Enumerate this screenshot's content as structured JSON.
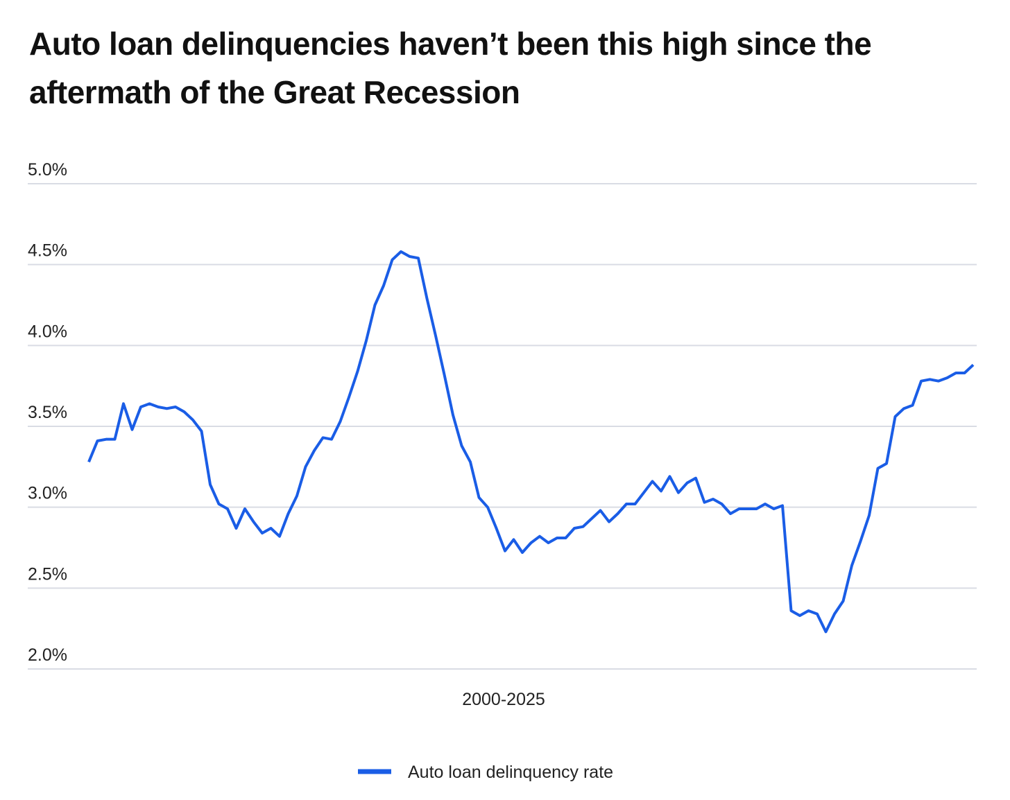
{
  "chart_data": {
    "type": "line",
    "title": "Auto loan delinquencies haven’t been this high since the aftermath of the Great Recession",
    "xlabel": "2000-2025",
    "series": [
      {
        "name": "Auto loan delinquency rate",
        "color": "#1a5de6",
        "values": [
          3.28,
          3.41,
          3.42,
          3.42,
          3.64,
          3.48,
          3.62,
          3.64,
          3.62,
          3.61,
          3.62,
          3.59,
          3.54,
          3.47,
          3.14,
          3.02,
          2.99,
          2.87,
          2.99,
          2.91,
          2.84,
          2.87,
          2.82,
          2.96,
          3.07,
          3.25,
          3.35,
          3.43,
          3.42,
          3.53,
          3.68,
          3.84,
          4.03,
          4.25,
          4.37,
          4.53,
          4.58,
          4.55,
          4.54,
          4.29,
          4.06,
          3.82,
          3.57,
          3.38,
          3.28,
          3.06,
          3.0,
          2.87,
          2.73,
          2.8,
          2.72,
          2.78,
          2.82,
          2.78,
          2.81,
          2.81,
          2.87,
          2.88,
          2.93,
          2.98,
          2.91,
          2.96,
          3.02,
          3.02,
          3.09,
          3.16,
          3.1,
          3.19,
          3.09,
          3.15,
          3.18,
          3.03,
          3.05,
          3.02,
          2.96,
          2.99,
          2.99,
          2.99,
          3.02,
          2.99,
          3.01,
          2.36,
          2.33,
          2.36,
          2.34,
          2.23,
          2.34,
          2.42,
          2.64,
          2.79,
          2.95,
          3.24,
          3.27,
          3.56,
          3.61,
          3.63,
          3.78,
          3.79,
          3.78,
          3.8,
          3.83,
          3.83,
          3.88
        ]
      }
    ],
    "ylim": [
      2.0,
      5.0
    ],
    "yticks": [
      {
        "value": 2.0,
        "label": "2.0%"
      },
      {
        "value": 2.5,
        "label": "2.5%"
      },
      {
        "value": 3.0,
        "label": "3.0%"
      },
      {
        "value": 3.5,
        "label": "3.5%"
      },
      {
        "value": 4.0,
        "label": "4.0%"
      },
      {
        "value": 4.5,
        "label": "4.5%"
      },
      {
        "value": 5.0,
        "label": "5.0%"
      }
    ],
    "grid": true
  }
}
